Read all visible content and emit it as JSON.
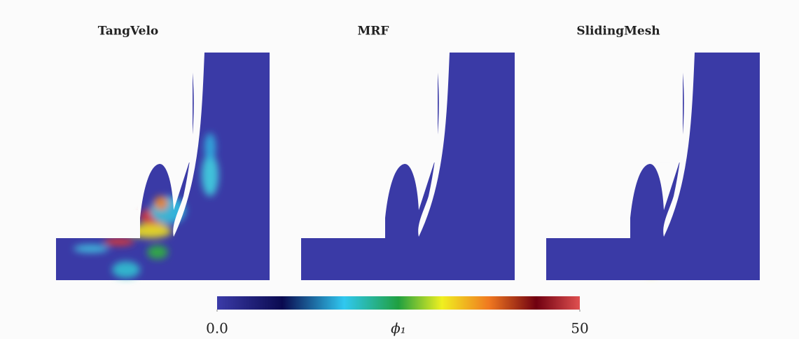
{
  "panels": [
    {
      "title": "TangVelo"
    },
    {
      "title": "MRF"
    },
    {
      "title": "SlidingMesh"
    }
  ],
  "colorbar": {
    "label": "ϕ₁",
    "ticks": [
      {
        "value": 0,
        "label": "0.0"
      },
      50
    ]
  }
}
